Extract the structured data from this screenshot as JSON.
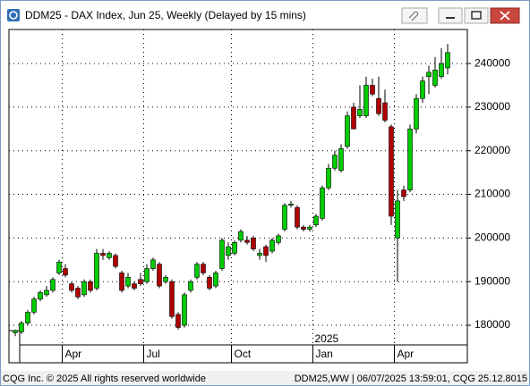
{
  "chart_data": {
    "type": "candlestick",
    "title": "DDM25 - DAX Index, Jun 25, Weekly (Delayed by 15 mins)",
    "year_label": "2025",
    "footer_left": "CQG Inc. © 2025 All rights reserved worldwide",
    "footer_right": "DDM25,WW | 06/07/2025 13:59:01, CQG 25.12.8015",
    "categories": [
      null,
      null,
      null,
      null,
      null,
      null,
      null,
      null,
      "Apr",
      null,
      null,
      null,
      null,
      null,
      null,
      null,
      null,
      null,
      null,
      null,
      null,
      "Jul",
      null,
      null,
      null,
      null,
      null,
      null,
      null,
      null,
      null,
      null,
      null,
      null,
      null,
      "Oct",
      null,
      null,
      null,
      null,
      null,
      null,
      null,
      null,
      null,
      null,
      null,
      null,
      "Jan",
      null,
      null,
      null,
      null,
      null,
      null,
      null,
      null,
      null,
      null,
      null,
      null,
      "Apr",
      null,
      null,
      null,
      null,
      null,
      null,
      null,
      null
    ],
    "open": [
      178300,
      178500,
      180500,
      183000,
      186000,
      187000,
      188000,
      192000,
      193000,
      189500,
      188500,
      187000,
      190000,
      188500,
      196500,
      195500,
      196000,
      192000,
      189000,
      189500,
      190500,
      190000,
      193000,
      194000,
      190000,
      190000,
      182500,
      180000,
      188000,
      191000,
      194000,
      191000,
      189000,
      193000,
      196000,
      196500,
      199500,
      199500,
      200000,
      196000,
      198000,
      197000,
      199000,
      202000,
      207500,
      207000,
      202500,
      202000,
      203000,
      204500,
      211500,
      216000,
      215500,
      221000,
      230000,
      228000,
      228000,
      235000,
      232000,
      231000,
      225500,
      200000,
      211000,
      211000,
      225000,
      232000,
      237000,
      235000,
      237000,
      239000
    ],
    "high": [
      179000,
      181000,
      183500,
      186500,
      188000,
      189000,
      191000,
      195000,
      194000,
      190000,
      189000,
      190500,
      190500,
      197500,
      197500,
      197000,
      196500,
      192500,
      192000,
      190000,
      192000,
      194000,
      195500,
      194500,
      191500,
      190500,
      183000,
      187500,
      190500,
      194500,
      194500,
      191500,
      192500,
      200000,
      199000,
      199500,
      202000,
      200500,
      200500,
      197500,
      198500,
      200000,
      201000,
      208000,
      208500,
      207500,
      203000,
      203000,
      205500,
      212000,
      217000,
      220000,
      221500,
      229000,
      231000,
      235000,
      237000,
      236500,
      237000,
      234000,
      226000,
      211000,
      212000,
      226000,
      233000,
      237000,
      239500,
      241500,
      243500,
      244500
    ],
    "low": [
      177500,
      178000,
      180000,
      182500,
      185500,
      186500,
      187500,
      191500,
      191000,
      187500,
      186000,
      186500,
      187500,
      188000,
      195000,
      195000,
      193000,
      187500,
      188500,
      188000,
      189000,
      189500,
      192500,
      188500,
      189500,
      181500,
      179000,
      179500,
      187500,
      190500,
      191500,
      188000,
      188500,
      192500,
      195000,
      196000,
      199000,
      198500,
      197000,
      195000,
      194500,
      196500,
      198500,
      201500,
      207000,
      202000,
      201500,
      201500,
      202500,
      204000,
      211000,
      215500,
      215000,
      220500,
      225000,
      227500,
      227500,
      232500,
      228000,
      226500,
      203000,
      190000,
      208500,
      210500,
      224000,
      231000,
      233000,
      234500,
      236500,
      237500
    ],
    "close": [
      178800,
      180500,
      183000,
      186000,
      187500,
      188000,
      190500,
      194500,
      191500,
      188000,
      186500,
      190000,
      188000,
      196500,
      196000,
      196500,
      193500,
      188000,
      191000,
      188500,
      189500,
      193000,
      195000,
      189000,
      191000,
      182000,
      179500,
      187000,
      190000,
      194000,
      192000,
      188500,
      192000,
      199500,
      198000,
      199000,
      201500,
      199000,
      197500,
      196500,
      196000,
      199500,
      200500,
      207500,
      207800,
      202500,
      202000,
      202500,
      205000,
      211500,
      216000,
      219000,
      220500,
      228000,
      225000,
      229500,
      235000,
      233000,
      228500,
      227000,
      205000,
      208500,
      209500,
      225000,
      232000,
      236000,
      238000,
      238500,
      240000,
      242500
    ],
    "up_color": "#00cc00",
    "down_color": "#b00000",
    "ylim": [
      175500,
      247800
    ],
    "yticks": [
      180000,
      190000,
      200000,
      210000,
      220000,
      230000,
      240000
    ],
    "grid": true
  }
}
